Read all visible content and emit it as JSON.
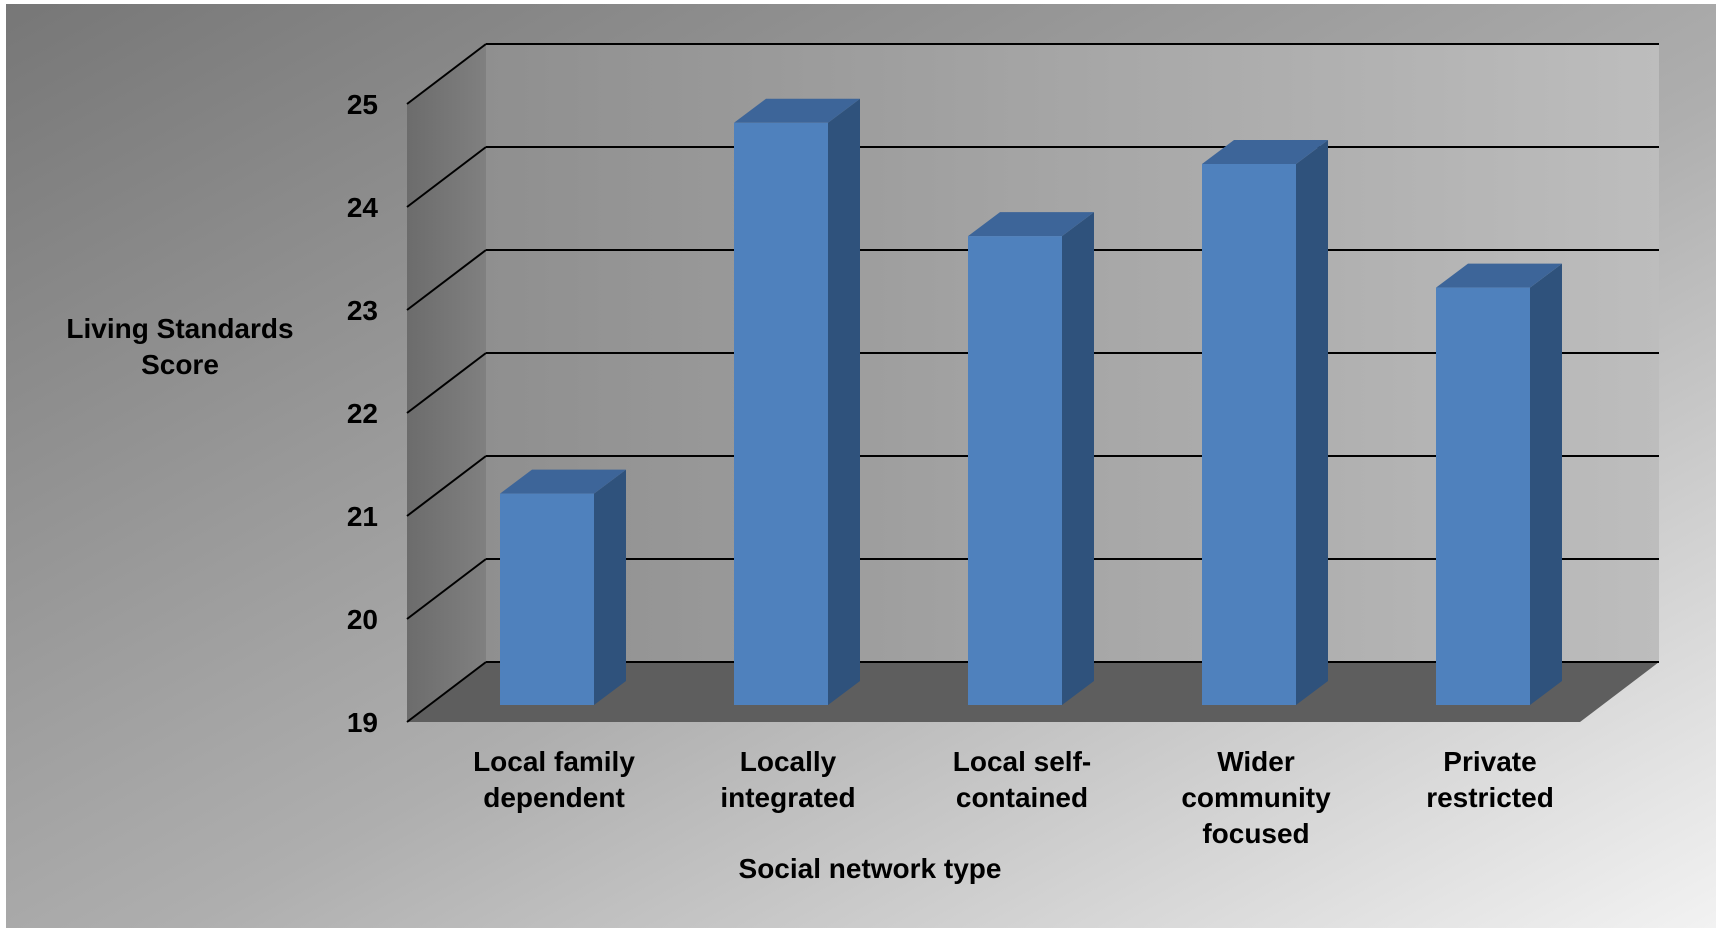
{
  "chart_data": {
    "type": "bar",
    "title": "",
    "xlabel": "Social network type",
    "ylabel": "Living Standards Score",
    "ylim": [
      19,
      25
    ],
    "yticks": [
      19,
      20,
      21,
      22,
      23,
      24,
      25
    ],
    "grid": true,
    "legend": "none",
    "style": "3d",
    "categories": [
      "Local family dependent",
      "Locally integrated",
      "Local self-contained",
      "Wider community focused",
      "Private restricted"
    ],
    "category_label_lines": [
      [
        "Local family",
        "dependent"
      ],
      [
        "Locally",
        "integrated"
      ],
      [
        "Local self-",
        "contained"
      ],
      [
        "Wider",
        "community",
        "focused"
      ],
      [
        "Private",
        "restricted"
      ]
    ],
    "values": [
      20.8,
      24.4,
      23.3,
      24.0,
      22.8
    ],
    "colors": {
      "bar_front": "#4f81bd",
      "bar_side": "#2f527c",
      "bar_top": "#3d6599",
      "floor": "#5e5e5e",
      "grid": "#000000"
    }
  }
}
